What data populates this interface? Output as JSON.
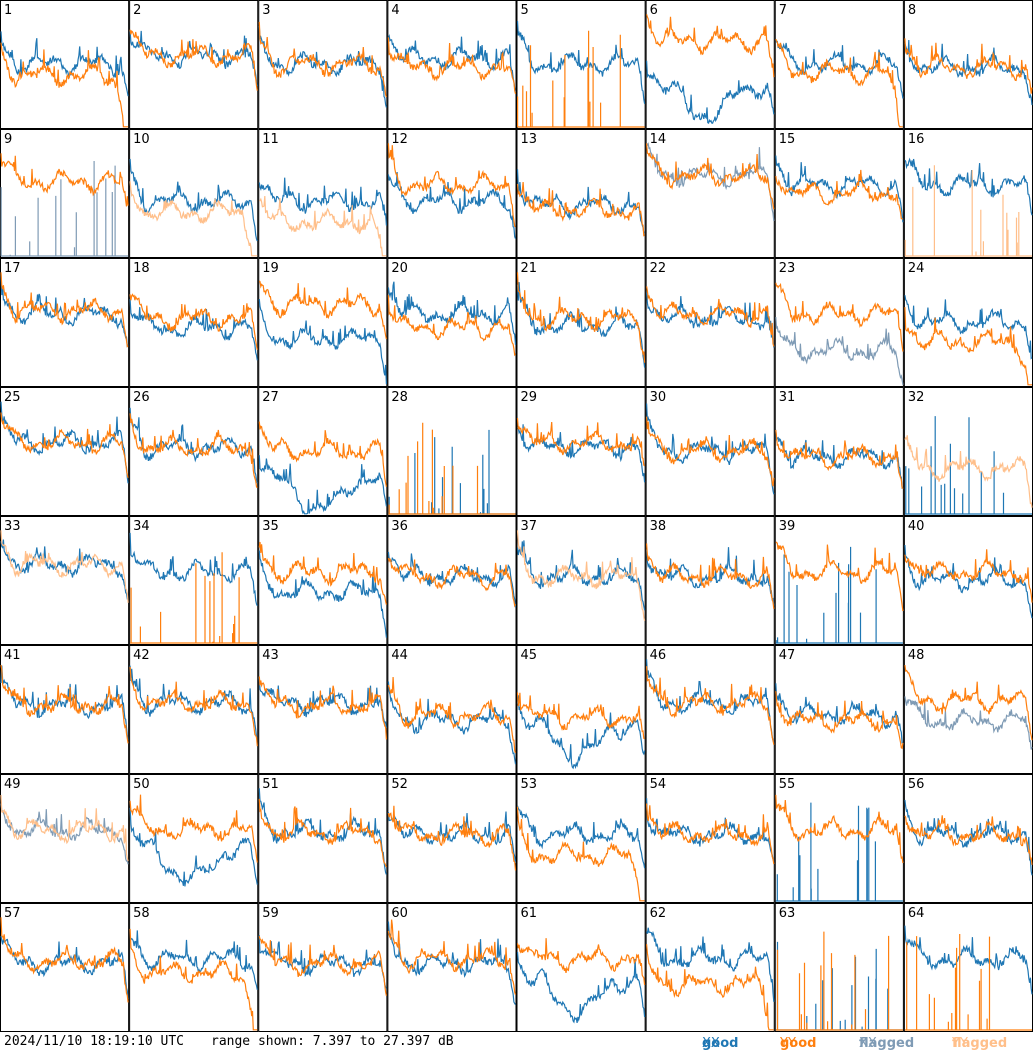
{
  "footer": {
    "timestamp": "2024/11/10 18:19:10 UTC",
    "range_text": "range shown: 7.397 to 27.397 dB"
  },
  "legend": [
    {
      "status": "good",
      "pol": "XX",
      "color": "#1f77b4"
    },
    {
      "status": "good",
      "pol": "YY",
      "color": "#ff7f0e"
    },
    {
      "status": "flagged",
      "pol": "XX",
      "color": "#7f9bb5"
    },
    {
      "status": "flagged",
      "pol": "YY",
      "color": "#ffbf8a"
    }
  ],
  "chart_data": {
    "type": "line",
    "grid_cols": 8,
    "grid_rows": 8,
    "ylim": [
      7.397,
      27.397
    ],
    "y_unit": "dB",
    "panels": [
      {
        "id": "1",
        "xx": "good",
        "yy": "good",
        "xx_level": 0.55,
        "yy_level": 0.45,
        "yy_droop": true
      },
      {
        "id": "2",
        "xx": "good",
        "yy": "good",
        "xx_level": 0.62,
        "yy_level": 0.62
      },
      {
        "id": "3",
        "xx": "good",
        "yy": "good",
        "xx_level": 0.55,
        "yy_level": 0.55
      },
      {
        "id": "4",
        "xx": "good",
        "yy": "good",
        "xx_level": 0.6,
        "yy_level": 0.52
      },
      {
        "id": "5",
        "xx": "good",
        "yy": "good",
        "xx_level": 0.55,
        "yy_level": 0.0,
        "yy_dead": true
      },
      {
        "id": "6",
        "xx": "good",
        "yy": "good",
        "xx_level": 0.35,
        "yy_level": 0.75,
        "xx_dip": true
      },
      {
        "id": "7",
        "xx": "good",
        "yy": "good",
        "xx_level": 0.55,
        "yy_level": 0.48,
        "yy_droop": true
      },
      {
        "id": "8",
        "xx": "good",
        "yy": "good",
        "xx_level": 0.52,
        "yy_level": 0.52
      },
      {
        "id": "9",
        "xx": "flagged",
        "yy": "good",
        "xx_level": 0.0,
        "yy_level": 0.65,
        "xx_dead": true
      },
      {
        "id": "10",
        "xx": "good",
        "yy": "flagged",
        "xx_level": 0.48,
        "yy_level": 0.38,
        "yy_droop": true
      },
      {
        "id": "11",
        "xx": "good",
        "yy": "flagged",
        "xx_level": 0.48,
        "yy_level": 0.3,
        "yy_droop": true
      },
      {
        "id": "12",
        "xx": "good",
        "yy": "good",
        "xx_level": 0.48,
        "yy_level": 0.62
      },
      {
        "id": "13",
        "xx": "good",
        "yy": "good",
        "xx_level": 0.45,
        "yy_level": 0.4
      },
      {
        "id": "14",
        "xx": "flagged",
        "yy": "good",
        "xx_level": 0.7,
        "yy_level": 0.7
      },
      {
        "id": "15",
        "xx": "good",
        "yy": "good",
        "xx_level": 0.62,
        "yy_level": 0.55
      },
      {
        "id": "16",
        "xx": "good",
        "yy": "flagged",
        "xx_level": 0.62,
        "yy_level": 0.0,
        "yy_dead": true
      },
      {
        "id": "17",
        "xx": "good",
        "yy": "good",
        "xx_level": 0.62,
        "yy_level": 0.65
      },
      {
        "id": "18",
        "xx": "good",
        "yy": "good",
        "xx_level": 0.5,
        "yy_level": 0.58
      },
      {
        "id": "19",
        "xx": "good",
        "yy": "good",
        "xx_level": 0.4,
        "yy_level": 0.7
      },
      {
        "id": "20",
        "xx": "good",
        "yy": "good",
        "xx_level": 0.62,
        "yy_level": 0.5
      },
      {
        "id": "21",
        "xx": "good",
        "yy": "good",
        "xx_level": 0.52,
        "yy_level": 0.58
      },
      {
        "id": "22",
        "xx": "good",
        "yy": "good",
        "xx_level": 0.58,
        "yy_level": 0.62
      },
      {
        "id": "23",
        "xx": "flagged",
        "yy": "good",
        "xx_level": 0.3,
        "yy_level": 0.62
      },
      {
        "id": "24",
        "xx": "good",
        "yy": "good",
        "xx_level": 0.55,
        "yy_level": 0.38,
        "yy_droop": true
      },
      {
        "id": "25",
        "xx": "good",
        "yy": "good",
        "xx_level": 0.62,
        "yy_level": 0.62
      },
      {
        "id": "26",
        "xx": "good",
        "yy": "good",
        "xx_level": 0.58,
        "yy_level": 0.58
      },
      {
        "id": "27",
        "xx": "good",
        "yy": "good",
        "xx_level": 0.3,
        "yy_level": 0.55,
        "xx_dip": true
      },
      {
        "id": "28",
        "xx": "good",
        "yy": "good",
        "xx_level": 0.0,
        "yy_level": 0.0,
        "xx_dead": true,
        "yy_dead": true
      },
      {
        "id": "29",
        "xx": "good",
        "yy": "good",
        "xx_level": 0.58,
        "yy_level": 0.62
      },
      {
        "id": "30",
        "xx": "good",
        "yy": "good",
        "xx_level": 0.55,
        "yy_level": 0.55
      },
      {
        "id": "31",
        "xx": "good",
        "yy": "good",
        "xx_level": 0.5,
        "yy_level": 0.5
      },
      {
        "id": "32",
        "xx": "good",
        "yy": "flagged",
        "xx_level": 0.0,
        "yy_level": 0.4,
        "xx_dead": true
      },
      {
        "id": "33",
        "xx": "good",
        "yy": "flagged",
        "xx_level": 0.68,
        "yy_level": 0.68
      },
      {
        "id": "34",
        "xx": "good",
        "yy": "good",
        "xx_level": 0.62,
        "yy_level": 0.0,
        "yy_dead": true
      },
      {
        "id": "35",
        "xx": "good",
        "yy": "good",
        "xx_level": 0.45,
        "yy_level": 0.62
      },
      {
        "id": "36",
        "xx": "good",
        "yy": "good",
        "xx_level": 0.58,
        "yy_level": 0.58
      },
      {
        "id": "37",
        "xx": "good",
        "yy": "flagged",
        "xx_level": 0.58,
        "yy_level": 0.58
      },
      {
        "id": "38",
        "xx": "good",
        "yy": "good",
        "xx_level": 0.58,
        "yy_level": 0.58
      },
      {
        "id": "39",
        "xx": "good",
        "yy": "good",
        "xx_level": 0.0,
        "yy_level": 0.62,
        "xx_dead": true
      },
      {
        "id": "40",
        "xx": "good",
        "yy": "good",
        "xx_level": 0.55,
        "yy_level": 0.62
      },
      {
        "id": "41",
        "xx": "good",
        "yy": "good",
        "xx_level": 0.58,
        "yy_level": 0.58
      },
      {
        "id": "42",
        "xx": "good",
        "yy": "good",
        "xx_level": 0.6,
        "yy_level": 0.6
      },
      {
        "id": "43",
        "xx": "good",
        "yy": "good",
        "xx_level": 0.6,
        "yy_level": 0.58
      },
      {
        "id": "44",
        "xx": "good",
        "yy": "good",
        "xx_level": 0.45,
        "yy_level": 0.5
      },
      {
        "id": "45",
        "xx": "good",
        "yy": "good",
        "xx_level": 0.4,
        "yy_level": 0.48,
        "xx_dip": true
      },
      {
        "id": "46",
        "xx": "good",
        "yy": "good",
        "xx_level": 0.6,
        "yy_level": 0.6
      },
      {
        "id": "47",
        "xx": "good",
        "yy": "good",
        "xx_level": 0.5,
        "yy_level": 0.45
      },
      {
        "id": "48",
        "xx": "flagged",
        "yy": "good",
        "xx_level": 0.45,
        "yy_level": 0.62
      },
      {
        "id": "49",
        "xx": "flagged",
        "yy": "flagged",
        "xx_level": 0.62,
        "yy_level": 0.62
      },
      {
        "id": "50",
        "xx": "good",
        "yy": "good",
        "xx_level": 0.45,
        "yy_level": 0.62,
        "xx_dip": true
      },
      {
        "id": "51",
        "xx": "good",
        "yy": "good",
        "xx_level": 0.6,
        "yy_level": 0.6
      },
      {
        "id": "52",
        "xx": "good",
        "yy": "good",
        "xx_level": 0.58,
        "yy_level": 0.58
      },
      {
        "id": "53",
        "xx": "good",
        "yy": "good",
        "xx_level": 0.58,
        "yy_level": 0.4,
        "yy_droop": true
      },
      {
        "id": "54",
        "xx": "good",
        "yy": "good",
        "xx_level": 0.58,
        "yy_level": 0.58
      },
      {
        "id": "55",
        "xx": "good",
        "yy": "good",
        "xx_level": 0.0,
        "yy_level": 0.62,
        "xx_dead": true
      },
      {
        "id": "56",
        "xx": "good",
        "yy": "good",
        "xx_level": 0.58,
        "yy_level": 0.58
      },
      {
        "id": "57",
        "xx": "good",
        "yy": "good",
        "xx_level": 0.58,
        "yy_level": 0.6
      },
      {
        "id": "58",
        "xx": "good",
        "yy": "good",
        "xx_level": 0.62,
        "yy_level": 0.5,
        "yy_droop": true
      },
      {
        "id": "59",
        "xx": "good",
        "yy": "good",
        "xx_level": 0.58,
        "yy_level": 0.58
      },
      {
        "id": "60",
        "xx": "good",
        "yy": "good",
        "xx_level": 0.58,
        "yy_level": 0.62
      },
      {
        "id": "61",
        "xx": "good",
        "yy": "good",
        "xx_level": 0.42,
        "yy_level": 0.62,
        "xx_dip": true
      },
      {
        "id": "62",
        "xx": "good",
        "yy": "good",
        "xx_level": 0.62,
        "yy_level": 0.4,
        "yy_droop": true
      },
      {
        "id": "63",
        "xx": "good",
        "yy": "good",
        "xx_level": 0.0,
        "yy_level": 0.0,
        "xx_dead": true,
        "yy_dead": true
      },
      {
        "id": "64",
        "xx": "good",
        "yy": "good",
        "xx_level": 0.62,
        "yy_level": 0.0,
        "yy_dead": true
      }
    ]
  }
}
